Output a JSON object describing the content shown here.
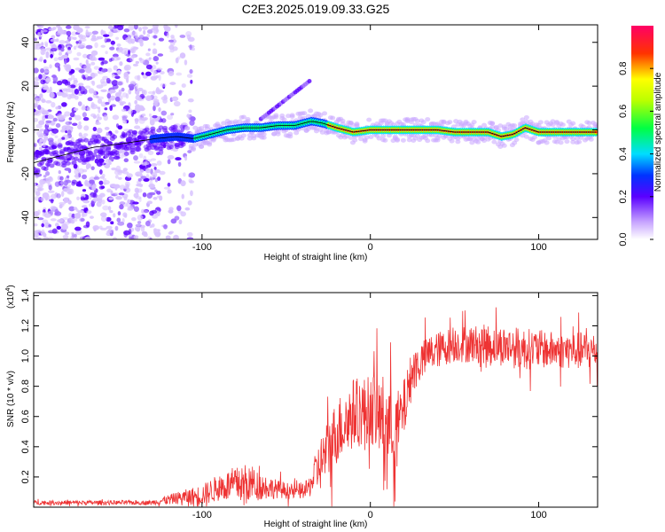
{
  "title": "C2E3.2025.019.09.33.G25",
  "chart_data": [
    {
      "type": "heatmap",
      "xlabel": "Height of straight line (km)",
      "ylabel": "Frequency (Hz)",
      "xlim": [
        -200,
        135
      ],
      "ylim": [
        -50,
        48
      ],
      "xticks": [
        -100,
        0,
        100
      ],
      "yticks": [
        -40,
        -20,
        0,
        20,
        40
      ],
      "colorbar": {
        "label": "Normalized spectral amplitude",
        "range": [
          0,
          1
        ],
        "ticks": [
          "0.0",
          "0.2",
          "0.4",
          "0.6",
          "0.8"
        ]
      },
      "ridge": [
        {
          "x": -200,
          "y": -15
        },
        {
          "x": -185,
          "y": -12
        },
        {
          "x": -165,
          "y": -8
        },
        {
          "x": -145,
          "y": -6
        },
        {
          "x": -128,
          "y": -4
        },
        {
          "x": -115,
          "y": -3
        },
        {
          "x": -105,
          "y": -4
        },
        {
          "x": -95,
          "y": -2
        },
        {
          "x": -85,
          "y": 0
        },
        {
          "x": -75,
          "y": 1
        },
        {
          "x": -65,
          "y": 1
        },
        {
          "x": -55,
          "y": 2
        },
        {
          "x": -45,
          "y": 2
        },
        {
          "x": -35,
          "y": 4
        },
        {
          "x": -28,
          "y": 3
        },
        {
          "x": -20,
          "y": 1
        },
        {
          "x": -10,
          "y": -1
        },
        {
          "x": 0,
          "y": 0
        },
        {
          "x": 10,
          "y": 0
        },
        {
          "x": 20,
          "y": 0
        },
        {
          "x": 30,
          "y": 0
        },
        {
          "x": 40,
          "y": 0
        },
        {
          "x": 50,
          "y": -1
        },
        {
          "x": 60,
          "y": -1
        },
        {
          "x": 70,
          "y": -1
        },
        {
          "x": 78,
          "y": -3
        },
        {
          "x": 85,
          "y": -2
        },
        {
          "x": 92,
          "y": 1
        },
        {
          "x": 100,
          "y": -1
        },
        {
          "x": 110,
          "y": -1
        },
        {
          "x": 120,
          "y": -1
        },
        {
          "x": 135,
          "y": -1
        }
      ]
    },
    {
      "type": "line",
      "xlabel": "Height of straight line (km)",
      "ylabel": "SNR (10 * v/v)",
      "yscale_label": "(x10",
      "yscale_exp": "4",
      "xlim": [
        -200,
        135
      ],
      "ylim": [
        0,
        1.42
      ],
      "xticks": [
        -100,
        0,
        100
      ],
      "yticks": [
        0.2,
        0.4,
        0.6,
        0.8,
        1.0,
        1.2,
        1.4
      ],
      "ytick_labels": [
        "0.2",
        "0.4",
        "0.6",
        "0.8",
        "1.0",
        "1.2",
        "1.4"
      ],
      "color": "#ee3333",
      "envelope": [
        {
          "x": -200,
          "base": 0.03,
          "amp": 0.015
        },
        {
          "x": -130,
          "base": 0.03,
          "amp": 0.015
        },
        {
          "x": -115,
          "base": 0.06,
          "amp": 0.04
        },
        {
          "x": -100,
          "base": 0.08,
          "amp": 0.07
        },
        {
          "x": -90,
          "base": 0.13,
          "amp": 0.09
        },
        {
          "x": -80,
          "base": 0.15,
          "amp": 0.12
        },
        {
          "x": -70,
          "base": 0.15,
          "amp": 0.11
        },
        {
          "x": -55,
          "base": 0.12,
          "amp": 0.06
        },
        {
          "x": -45,
          "base": 0.1,
          "amp": 0.05
        },
        {
          "x": -37,
          "base": 0.12,
          "amp": 0.06
        },
        {
          "x": -30,
          "base": 0.28,
          "amp": 0.18
        },
        {
          "x": -20,
          "base": 0.5,
          "amp": 0.22
        },
        {
          "x": -10,
          "base": 0.62,
          "amp": 0.24
        },
        {
          "x": 0,
          "base": 0.65,
          "amp": 0.22
        },
        {
          "x": 8,
          "base": 0.58,
          "amp": 0.3
        },
        {
          "x": 15,
          "base": 0.5,
          "amp": 0.25
        },
        {
          "x": 20,
          "base": 0.65,
          "amp": 0.2
        },
        {
          "x": 25,
          "base": 0.9,
          "amp": 0.15
        },
        {
          "x": 35,
          "base": 1.02,
          "amp": 0.12
        },
        {
          "x": 50,
          "base": 1.08,
          "amp": 0.12
        },
        {
          "x": 70,
          "base": 1.08,
          "amp": 0.13
        },
        {
          "x": 90,
          "base": 1.05,
          "amp": 0.14
        },
        {
          "x": 110,
          "base": 1.04,
          "amp": 0.12
        },
        {
          "x": 135,
          "base": 1.03,
          "amp": 0.13
        }
      ]
    }
  ]
}
